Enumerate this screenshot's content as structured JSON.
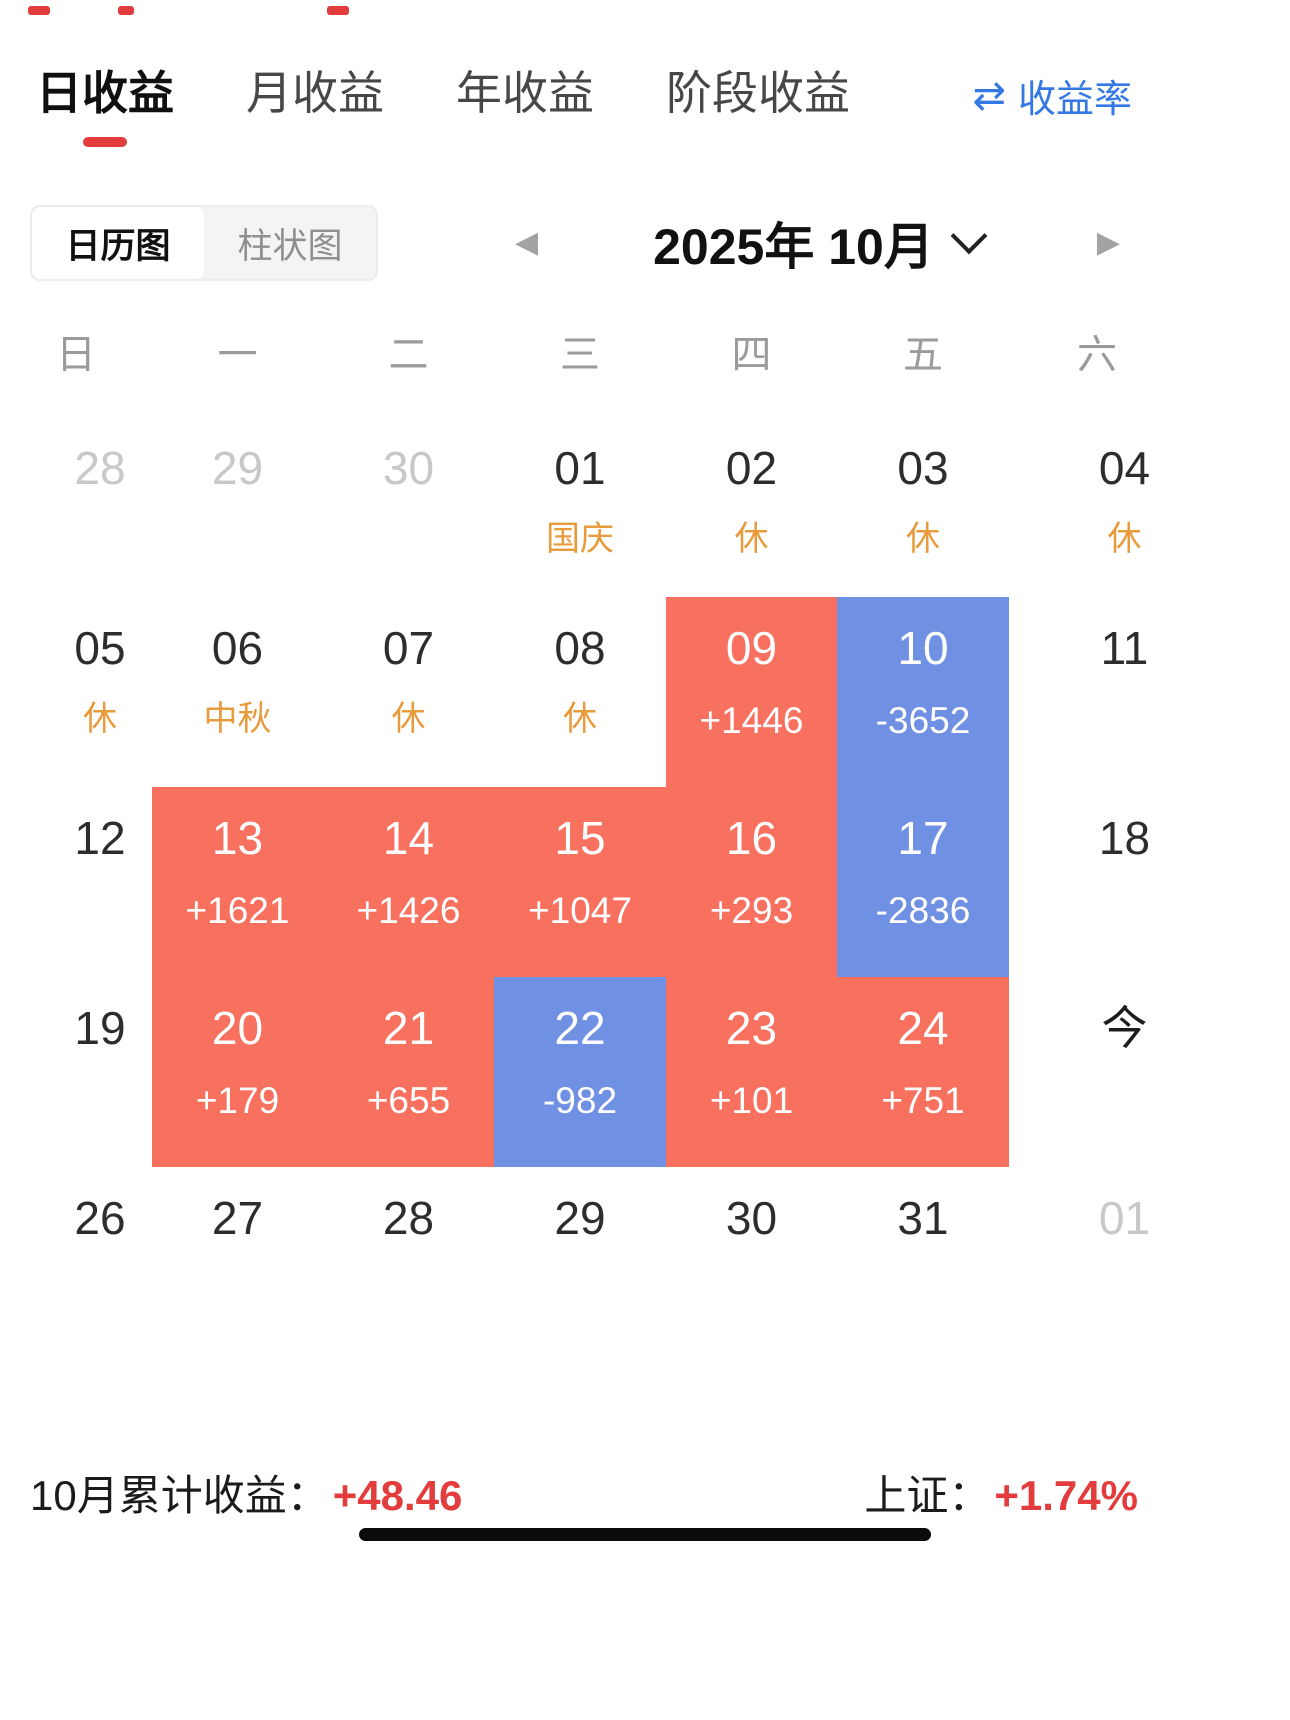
{
  "tabs": {
    "items": [
      {
        "label": "日收益",
        "active": true
      },
      {
        "label": "月收益",
        "active": false
      },
      {
        "label": "年收益",
        "active": false
      },
      {
        "label": "阶段收益",
        "active": false
      }
    ],
    "rate_link": {
      "icon": "⇄",
      "label": "收益率"
    }
  },
  "view_toggle": {
    "options": [
      {
        "label": "日历图",
        "active": true
      },
      {
        "label": "柱状图",
        "active": false
      }
    ]
  },
  "month_nav": {
    "title": "2025年 10月",
    "prev_icon": "◀",
    "next_icon": "▶"
  },
  "weekday_headers": [
    "日",
    "一",
    "二",
    "三",
    "四",
    "五",
    "六"
  ],
  "calendar_weeks": [
    [
      {
        "day": "28",
        "muted": true
      },
      {
        "day": "29",
        "muted": true
      },
      {
        "day": "30",
        "muted": true
      },
      {
        "day": "01",
        "note": "国庆"
      },
      {
        "day": "02",
        "note": "休"
      },
      {
        "day": "03",
        "note": "休"
      },
      {
        "day": "04",
        "note": "休"
      }
    ],
    [
      {
        "day": "05",
        "note": "休"
      },
      {
        "day": "06",
        "note": "中秋"
      },
      {
        "day": "07",
        "note": "休"
      },
      {
        "day": "08",
        "note": "休"
      },
      {
        "day": "09",
        "value": "+1446",
        "type": "pos"
      },
      {
        "day": "10",
        "value": "-3652",
        "type": "neg"
      },
      {
        "day": "11"
      }
    ],
    [
      {
        "day": "12"
      },
      {
        "day": "13",
        "value": "+1621",
        "type": "pos"
      },
      {
        "day": "14",
        "value": "+1426",
        "type": "pos"
      },
      {
        "day": "15",
        "value": "+1047",
        "type": "pos"
      },
      {
        "day": "16",
        "value": "+293",
        "type": "pos"
      },
      {
        "day": "17",
        "value": "-2836",
        "type": "neg"
      },
      {
        "day": "18"
      }
    ],
    [
      {
        "day": "19"
      },
      {
        "day": "20",
        "value": "+179",
        "type": "pos"
      },
      {
        "day": "21",
        "value": "+655",
        "type": "pos"
      },
      {
        "day": "22",
        "value": "-982",
        "type": "neg"
      },
      {
        "day": "23",
        "value": "+101",
        "type": "pos"
      },
      {
        "day": "24",
        "value": "+751",
        "type": "pos"
      },
      {
        "day": "今",
        "today": true
      }
    ],
    [
      {
        "day": "26"
      },
      {
        "day": "27"
      },
      {
        "day": "28"
      },
      {
        "day": "29"
      },
      {
        "day": "30"
      },
      {
        "day": "31"
      },
      {
        "day": "01",
        "muted": true
      }
    ]
  ],
  "footer": {
    "summary_label": "10月累计收益：",
    "summary_value": "+48.46",
    "index_label": "上证：",
    "index_value": "+1.74%"
  },
  "colors": {
    "positive_bg": "#f8705e",
    "negative_bg": "#7090e4",
    "holiday_text": "#e89b3c",
    "accent_red": "#e23c3c",
    "link_blue": "#3478e6"
  }
}
